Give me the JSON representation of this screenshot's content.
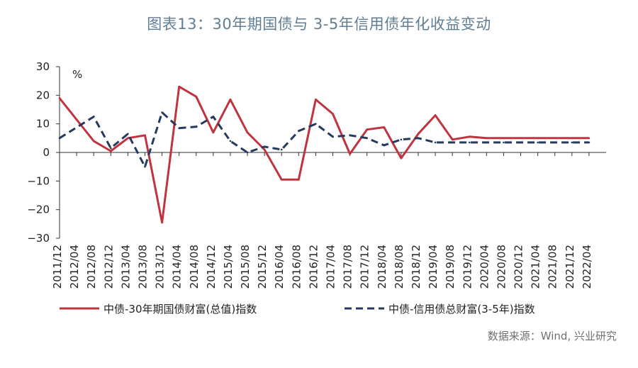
{
  "title": "图表13：30年期国债与 3-5年信用债年化收益变动",
  "source": "数据来源：Wind, 兴业研究",
  "colors": {
    "series1": "#c0343f",
    "series2": "#243a5e",
    "axis": "#333333"
  },
  "chart_data": {
    "type": "line",
    "unit": "%",
    "ylim": [
      -30,
      30
    ],
    "yticks": [
      "30",
      "20",
      "10",
      "0",
      "−10",
      "−20",
      "−30"
    ],
    "ytick_values": [
      30,
      20,
      10,
      0,
      -10,
      -20,
      -30
    ],
    "grid": false,
    "legend_placement": "bottom",
    "categories": [
      "2011/12",
      "2012/04",
      "2012/08",
      "2012/12",
      "2013/04",
      "2013/08",
      "2013/12",
      "2014/04",
      "2014/08",
      "2014/12",
      "2015/04",
      "2015/08",
      "2015/12",
      "2016/04",
      "2016/08",
      "2016/12",
      "2017/04",
      "2017/08",
      "2017/12",
      "2018/04",
      "2018/08",
      "2018/12",
      "2019/04",
      "2019/08",
      "2019/12",
      "2020/04",
      "2020/08",
      "2020/12",
      "2021/04",
      "2021/08",
      "2021/12",
      "2022/04"
    ],
    "series": [
      {
        "name": "中债-30年期国债财富(总值)指数",
        "style": "solid",
        "x": [
          "2011/12",
          "2012/08",
          "2012/12",
          "2013/04",
          "2013/08",
          "2013/12",
          "2014/04",
          "2014/08",
          "2014/12",
          "2015/04",
          "2015/08",
          "2015/12",
          "2016/04",
          "2016/08",
          "2016/12",
          "2017/04",
          "2017/08",
          "2017/12",
          "2018/04",
          "2018/08",
          "2018/12",
          "2019/04",
          "2019/08",
          "2019/12",
          "2020/04",
          "2020/08",
          "2020/12",
          "2021/04",
          "2021/08",
          "2021/12",
          "2022/04"
        ],
        "values": [
          19,
          4,
          0.5,
          5,
          6,
          -24.5,
          23,
          19.5,
          7,
          18.5,
          7,
          1,
          -9.5,
          -9.5,
          18.5,
          13.5,
          -0.5,
          8,
          8.8,
          -2,
          6.5,
          13,
          4.5,
          5.5,
          5,
          5,
          5,
          5,
          5,
          5,
          5
        ]
      },
      {
        "name": "中债-信用债总财富(3-5年)指数",
        "style": "dashed",
        "x": [
          "2011/12",
          "2012/08",
          "2012/12",
          "2013/04",
          "2013/08",
          "2013/12",
          "2014/04",
          "2014/08",
          "2014/12",
          "2015/04",
          "2015/08",
          "2015/12",
          "2016/04",
          "2016/08",
          "2016/12",
          "2017/04",
          "2017/08",
          "2017/12",
          "2018/04",
          "2018/08",
          "2018/12",
          "2019/04",
          "2019/08",
          "2019/12",
          "2020/04",
          "2020/08",
          "2020/12",
          "2021/04",
          "2021/08",
          "2021/12",
          "2022/04"
        ],
        "values": [
          5,
          12.5,
          1.5,
          6.5,
          -5,
          14,
          8.5,
          9,
          12.5,
          4,
          0,
          2,
          1,
          7.5,
          10,
          5.5,
          6,
          5,
          2.5,
          4.5,
          5,
          3.5,
          3.5,
          3.5,
          3.5,
          3.5,
          3.5,
          3.5,
          3.5,
          3.5,
          3.5
        ]
      }
    ]
  }
}
